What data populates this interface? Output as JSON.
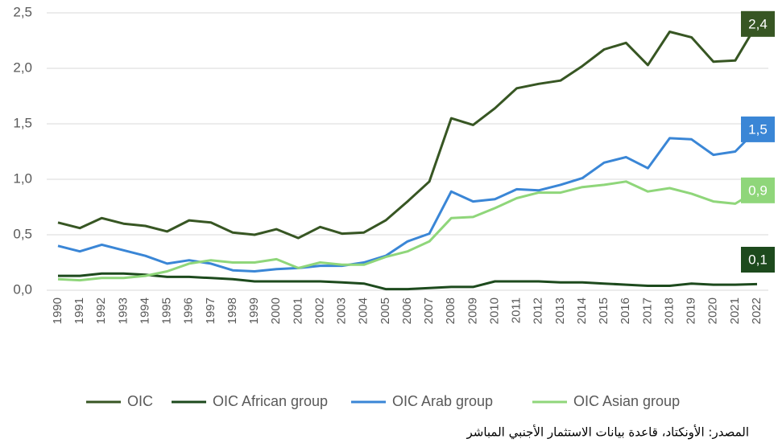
{
  "chart_data": {
    "type": "line",
    "categories": [
      "1990",
      "1991",
      "1992",
      "1993",
      "1994",
      "1995",
      "1996",
      "1997",
      "1998",
      "1999",
      "2000",
      "2001",
      "2002",
      "2003",
      "2004",
      "2005",
      "2006",
      "2007",
      "2008",
      "2009",
      "2010",
      "2011",
      "2012",
      "2013",
      "2014",
      "2015",
      "2016",
      "2017",
      "2018",
      "2019",
      "2020",
      "2021",
      "2022"
    ],
    "series": [
      {
        "name": "OIC",
        "color": "#375623",
        "values": [
          0.61,
          0.56,
          0.65,
          0.6,
          0.58,
          0.53,
          0.63,
          0.61,
          0.52,
          0.5,
          0.55,
          0.47,
          0.57,
          0.51,
          0.52,
          0.63,
          0.8,
          0.98,
          1.55,
          1.49,
          1.64,
          1.82,
          1.86,
          1.89,
          2.02,
          2.17,
          2.23,
          2.03,
          2.33,
          2.28,
          2.06,
          2.07,
          2.4
        ],
        "value_labels": [
          null,
          null,
          null,
          null,
          null,
          null,
          null,
          null,
          null,
          null,
          null,
          null,
          null,
          null,
          null,
          null,
          null,
          null,
          null,
          null,
          null,
          null,
          null,
          null,
          null,
          null,
          null,
          null,
          null,
          null,
          null,
          null,
          "2,4"
        ]
      },
      {
        "name": "OIC African group",
        "color": "#1d4a1d",
        "values": [
          0.13,
          0.13,
          0.15,
          0.15,
          0.14,
          0.12,
          0.12,
          0.11,
          0.1,
          0.08,
          0.08,
          0.08,
          0.08,
          0.07,
          0.06,
          0.01,
          0.01,
          0.02,
          0.03,
          0.03,
          0.08,
          0.08,
          0.08,
          0.07,
          0.07,
          0.06,
          0.05,
          0.04,
          0.04,
          0.06,
          0.05,
          0.05,
          0.055
        ],
        "value_labels": [
          null,
          null,
          null,
          null,
          null,
          null,
          null,
          null,
          null,
          null,
          null,
          null,
          null,
          null,
          null,
          null,
          null,
          null,
          null,
          null,
          null,
          null,
          null,
          null,
          null,
          null,
          null,
          null,
          null,
          null,
          null,
          null,
          "0,1"
        ]
      },
      {
        "name": "OIC Arab group",
        "color": "#3a86d6",
        "values": [
          0.4,
          0.35,
          0.41,
          0.36,
          0.31,
          0.24,
          0.27,
          0.24,
          0.18,
          0.17,
          0.19,
          0.2,
          0.22,
          0.22,
          0.25,
          0.31,
          0.44,
          0.51,
          0.89,
          0.8,
          0.82,
          0.91,
          0.9,
          0.95,
          1.01,
          1.15,
          1.2,
          1.1,
          1.37,
          1.36,
          1.22,
          1.25,
          1.45
        ],
        "value_labels": [
          null,
          null,
          null,
          null,
          null,
          null,
          null,
          null,
          null,
          null,
          null,
          null,
          null,
          null,
          null,
          null,
          null,
          null,
          null,
          null,
          null,
          null,
          null,
          null,
          null,
          null,
          null,
          null,
          null,
          null,
          null,
          null,
          "1,5"
        ]
      },
      {
        "name": "OIC Asian group",
        "color": "#8fd67a",
        "values": [
          0.1,
          0.09,
          0.11,
          0.11,
          0.13,
          0.17,
          0.24,
          0.27,
          0.25,
          0.25,
          0.28,
          0.2,
          0.25,
          0.23,
          0.23,
          0.3,
          0.35,
          0.44,
          0.65,
          0.66,
          0.74,
          0.83,
          0.88,
          0.88,
          0.93,
          0.95,
          0.98,
          0.89,
          0.92,
          0.87,
          0.8,
          0.78,
          0.9
        ],
        "value_labels": [
          null,
          null,
          null,
          null,
          null,
          null,
          null,
          null,
          null,
          null,
          null,
          null,
          null,
          null,
          null,
          null,
          null,
          null,
          null,
          null,
          null,
          null,
          null,
          null,
          null,
          null,
          null,
          null,
          null,
          null,
          null,
          null,
          "0,9"
        ]
      }
    ],
    "ylim": [
      0,
      2.5
    ],
    "yticks": [
      {
        "value": 0,
        "label": "0,0"
      },
      {
        "value": 0.5,
        "label": "0,5"
      },
      {
        "value": 1,
        "label": "1,0"
      },
      {
        "value": 1.5,
        "label": "1,5"
      },
      {
        "value": 2,
        "label": "2,0"
      },
      {
        "value": 2.5,
        "label": "2,5"
      }
    ],
    "grid": true,
    "legend": "bottom",
    "source": "المصدر: الأونكتاد، قاعدة بيانات الاستثمار الأجنبي المباشر"
  }
}
